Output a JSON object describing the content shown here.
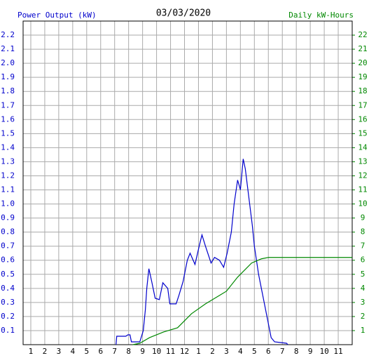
{
  "chart_data": {
    "type": "line",
    "title": "03/03/2020",
    "y_label": "Power Output (kW)",
    "y2_label": "Daily kW-Hours",
    "xlim": [
      0.45,
      24
    ],
    "ylim": [
      0,
      2.3
    ],
    "y2lim": [
      0,
      23
    ],
    "grid": true,
    "xticks": [
      1,
      2,
      3,
      4,
      5,
      6,
      7,
      8,
      9,
      10,
      11,
      12,
      {
        "value": 13,
        "label": "1"
      },
      {
        "value": 14,
        "label": "2"
      },
      {
        "value": 15,
        "label": "3"
      },
      {
        "value": 16,
        "label": "4"
      },
      {
        "value": 17,
        "label": "5"
      },
      {
        "value": 18,
        "label": "6"
      },
      {
        "value": 19,
        "label": "7"
      },
      {
        "value": 20,
        "label": "8"
      },
      {
        "value": 21,
        "label": "9"
      },
      {
        "value": 22,
        "label": "10"
      },
      {
        "value": 23,
        "label": "11"
      }
    ],
    "yticks": [
      0.1,
      0.2,
      0.3,
      0.4,
      0.5,
      0.6,
      0.7,
      0.8,
      0.9,
      {
        "value": 1,
        "label": "1.0"
      },
      1.1,
      1.2,
      1.3,
      1.4,
      1.5,
      1.6,
      1.7,
      1.8,
      1.9,
      {
        "value": 2,
        "label": "2.0"
      },
      2.1,
      2.2
    ],
    "y2ticks": [
      1,
      2,
      3,
      4,
      5,
      6,
      7,
      8,
      9,
      10,
      11,
      12,
      13,
      14,
      15,
      16,
      17,
      18,
      19,
      20,
      21,
      22
    ],
    "series": [
      {
        "color": "#0000cc",
        "x": [
          7.1,
          7.15,
          7.8,
          7.95,
          8.1,
          8.2,
          8.8,
          9.05,
          9.2,
          9.3,
          9.45,
          9.65,
          9.9,
          10.2,
          10.45,
          10.8,
          10.95,
          11.4,
          11.6,
          11.9,
          12.2,
          12.4,
          12.75,
          13.05,
          13.25,
          13.5,
          13.9,
          14.15,
          14.5,
          14.8,
          15.05,
          15.35,
          15.55,
          15.8,
          16.0,
          16.2,
          16.35,
          16.6,
          16.85,
          17.0,
          17.3,
          17.7,
          18.0,
          18.2,
          18.45,
          19.3,
          19.4
        ],
        "values": [
          0,
          0.06,
          0.06,
          0.07,
          0.07,
          0.02,
          0.02,
          0.1,
          0.25,
          0.4,
          0.54,
          0.45,
          0.33,
          0.32,
          0.44,
          0.4,
          0.29,
          0.29,
          0.35,
          0.45,
          0.6,
          0.65,
          0.57,
          0.7,
          0.78,
          0.7,
          0.58,
          0.62,
          0.6,
          0.55,
          0.65,
          0.8,
          1.0,
          1.17,
          1.1,
          1.32,
          1.25,
          1.05,
          0.85,
          0.7,
          0.5,
          0.3,
          0.15,
          0.05,
          0.02,
          0.01,
          0
        ]
      },
      {
        "color": "#008800",
        "axis": "y2",
        "x": [
          8.3,
          8.8,
          9.5,
          10.5,
          11.5,
          12.5,
          13.5,
          14.5,
          15.0,
          15.8,
          16.8,
          17.5,
          18.0,
          24.0
        ],
        "values": [
          0,
          0.1,
          0.5,
          0.9,
          1.2,
          2.2,
          2.9,
          3.5,
          3.8,
          4.8,
          5.8,
          6.1,
          6.2,
          6.2
        ]
      }
    ]
  }
}
